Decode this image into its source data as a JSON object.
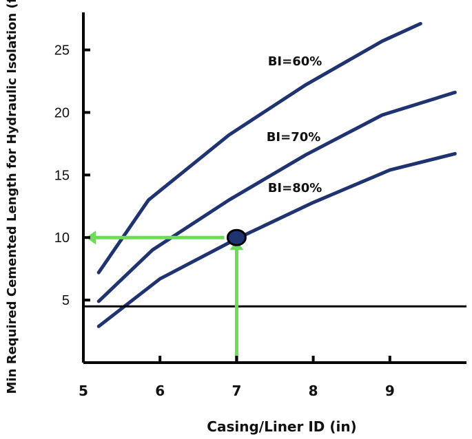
{
  "chart_data": {
    "type": "line",
    "title": "",
    "xlabel": "Casing/Liner ID (in)",
    "ylabel": "Min Required Cemented Length for Hydraulic Isolation (ft)",
    "xlim": [
      5,
      10
    ],
    "ylim": [
      0,
      28
    ],
    "x_ticks": [
      5,
      6,
      7,
      8,
      9
    ],
    "y_ticks": [
      5,
      10,
      15,
      20,
      25
    ],
    "grid": false,
    "legend": "none",
    "series": [
      {
        "name": "BI=60%",
        "color": "#1f3272",
        "points": [
          [
            5.2,
            7.2
          ],
          [
            5.85,
            13.0
          ],
          [
            6.9,
            18.2
          ],
          [
            7.9,
            22.2
          ],
          [
            8.9,
            25.7
          ],
          [
            9.4,
            27.1
          ]
        ]
      },
      {
        "name": "BI=70%",
        "color": "#1f3272",
        "points": [
          [
            5.2,
            4.9
          ],
          [
            5.9,
            9.0
          ],
          [
            6.9,
            13.0
          ],
          [
            7.9,
            16.6
          ],
          [
            8.9,
            19.8
          ],
          [
            9.85,
            21.6
          ]
        ]
      },
      {
        "name": "BI=80%",
        "color": "#1f3272",
        "points": [
          [
            5.2,
            2.9
          ],
          [
            6.0,
            6.7
          ],
          [
            7.0,
            9.9
          ],
          [
            8.0,
            12.8
          ],
          [
            9.0,
            15.4
          ],
          [
            9.85,
            16.7
          ]
        ]
      }
    ],
    "reference_line": {
      "y": 4.5,
      "color": "#000000"
    },
    "highlight": {
      "x": 7.0,
      "y": 10.0,
      "color": "#1f3272",
      "arrow_color": "#6ddc57"
    }
  }
}
